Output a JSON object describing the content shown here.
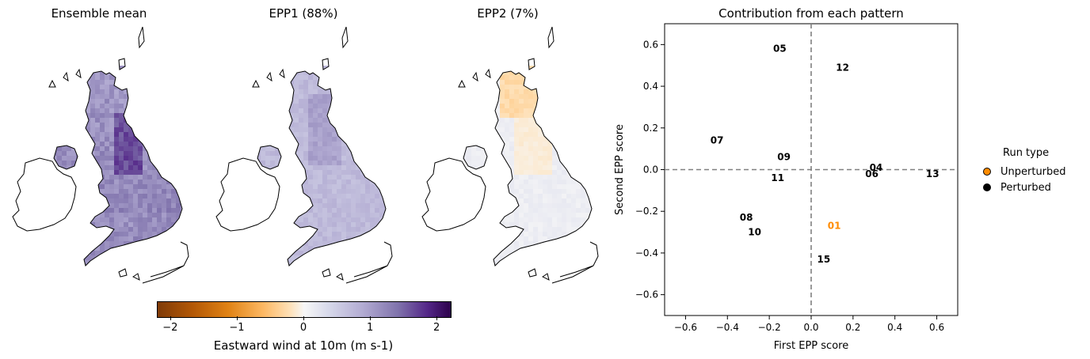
{
  "maps": [
    {
      "title": "Ensemble mean",
      "field": "mean"
    },
    {
      "title": "EPP1 (88%)",
      "field": "epp1"
    },
    {
      "title": "EPP2 (7%)",
      "field": "epp2"
    }
  ],
  "colorbar": {
    "label": "Eastward wind at 10m (m s-1)",
    "ticks": [
      "−2",
      "−1",
      "0",
      "1",
      "2"
    ],
    "range": [
      -2.2,
      2.2
    ],
    "colormap": "PuOr"
  },
  "chart_data": {
    "type": "scatter",
    "title": "Contribution from each pattern",
    "xlabel": "First EPP score",
    "ylabel": "Second EPP score",
    "xlim": [
      -0.7,
      0.7
    ],
    "ylim": [
      -0.7,
      0.7
    ],
    "xticks": [
      "−0.6",
      "−0.4",
      "−0.2",
      "0.0",
      "0.2",
      "0.4",
      "0.6"
    ],
    "yticks": [
      "−0.6",
      "−0.4",
      "−0.2",
      "0.0",
      "0.2",
      "0.4",
      "0.6"
    ],
    "reference_lines": {
      "x": 0,
      "y": 0,
      "style": "dashed",
      "color": "#808080"
    },
    "points": [
      {
        "label": "01",
        "x": 0.11,
        "y": -0.27,
        "run_type": "Unperturbed"
      },
      {
        "label": "04",
        "x": 0.31,
        "y": 0.01,
        "run_type": "Perturbed"
      },
      {
        "label": "05",
        "x": -0.15,
        "y": 0.58,
        "run_type": "Perturbed"
      },
      {
        "label": "06",
        "x": 0.29,
        "y": -0.02,
        "run_type": "Perturbed"
      },
      {
        "label": "07",
        "x": -0.45,
        "y": 0.14,
        "run_type": "Perturbed"
      },
      {
        "label": "08",
        "x": -0.31,
        "y": -0.23,
        "run_type": "Perturbed"
      },
      {
        "label": "09",
        "x": -0.13,
        "y": 0.06,
        "run_type": "Perturbed"
      },
      {
        "label": "10",
        "x": -0.27,
        "y": -0.3,
        "run_type": "Perturbed"
      },
      {
        "label": "11",
        "x": -0.16,
        "y": -0.04,
        "run_type": "Perturbed"
      },
      {
        "label": "12",
        "x": 0.15,
        "y": 0.49,
        "run_type": "Perturbed"
      },
      {
        "label": "13",
        "x": 0.58,
        "y": -0.02,
        "run_type": "Perturbed"
      },
      {
        "label": "15",
        "x": 0.06,
        "y": -0.43,
        "run_type": "Perturbed"
      }
    ],
    "legend": {
      "title": "Run type",
      "entries": [
        {
          "label": "Unperturbed",
          "color": "#ff8c00"
        },
        {
          "label": "Perturbed",
          "color": "#000000"
        }
      ],
      "placement": "right"
    },
    "grid": false
  }
}
